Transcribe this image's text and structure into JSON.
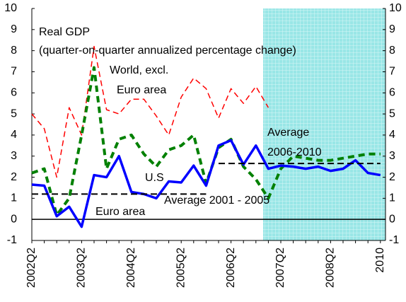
{
  "chart_data": {
    "type": "line",
    "title": "Real GDP",
    "subtitle": "(quarter-on-quarter annualized percentage change)",
    "categories": [
      "2002Q2",
      null,
      null,
      null,
      "2003Q2",
      null,
      null,
      null,
      "2004Q2",
      null,
      null,
      null,
      "2005Q2",
      null,
      null,
      null,
      "2006Q2",
      null,
      null,
      null,
      "2007Q2",
      null,
      null,
      null,
      "2008Q2",
      null,
      null,
      null,
      "2010"
    ],
    "series": [
      {
        "name": [
          "World, excl.",
          "Euro area"
        ],
        "color": "#ff0000",
        "style": "dashed-thin",
        "values": [
          5.0,
          4.3,
          2.0,
          5.3,
          4.0,
          8.2,
          5.2,
          5.0,
          5.7,
          5.7,
          4.9,
          4.0,
          5.8,
          6.7,
          6.2,
          4.8,
          6.2,
          5.5,
          6.3,
          5.3,
          null,
          null,
          null,
          null,
          null,
          null,
          null,
          null,
          null
        ]
      },
      {
        "name": "Euro area",
        "color": "#008000",
        "style": "dashed-thick",
        "values": [
          2.2,
          2.4,
          0.2,
          1.0,
          4.0,
          7.2,
          2.4,
          3.8,
          4.0,
          3.1,
          2.5,
          3.3,
          3.5,
          4.0,
          1.7,
          3.4,
          3.8,
          2.5,
          1.9,
          1.0,
          2.4,
          3.0,
          2.9,
          2.8,
          2.8,
          2.9,
          3.0,
          3.1,
          3.1
        ]
      },
      {
        "name": "U.S",
        "color": "#0000ff",
        "style": "solid",
        "values": [
          1.65,
          1.6,
          0.15,
          0.6,
          -0.35,
          2.1,
          2.0,
          3.0,
          1.3,
          1.2,
          1.0,
          1.8,
          1.75,
          2.55,
          1.6,
          3.5,
          3.75,
          2.6,
          3.5,
          2.4,
          2.55,
          2.5,
          2.4,
          2.5,
          2.3,
          2.4,
          2.8,
          2.2,
          2.1
        ]
      },
      {
        "name": "Average 2001 - 2005",
        "color": "#000000",
        "style": "average",
        "values": [
          1.2,
          1.2,
          1.2,
          1.2,
          1.2,
          1.2,
          1.2,
          1.2,
          1.2,
          1.2,
          1.2,
          1.2,
          1.2,
          1.2,
          1.2,
          null,
          null,
          null,
          null,
          null,
          null,
          null,
          null,
          null,
          null,
          null,
          null,
          null,
          null
        ]
      },
      {
        "name": [
          "Average",
          "2006-2010"
        ],
        "color": "#000000",
        "style": "average",
        "values": [
          null,
          null,
          null,
          null,
          null,
          null,
          null,
          null,
          null,
          null,
          null,
          null,
          null,
          null,
          null,
          2.65,
          2.65,
          2.65,
          2.65,
          2.65,
          2.65,
          2.65,
          2.65,
          2.65,
          2.65,
          2.65,
          2.65,
          2.65,
          2.65
        ]
      }
    ],
    "ylim": [
      -1,
      10
    ],
    "yticks": [
      -1,
      0,
      1,
      2,
      3,
      4,
      5,
      6,
      7,
      8,
      9,
      10
    ],
    "grid": false
  }
}
